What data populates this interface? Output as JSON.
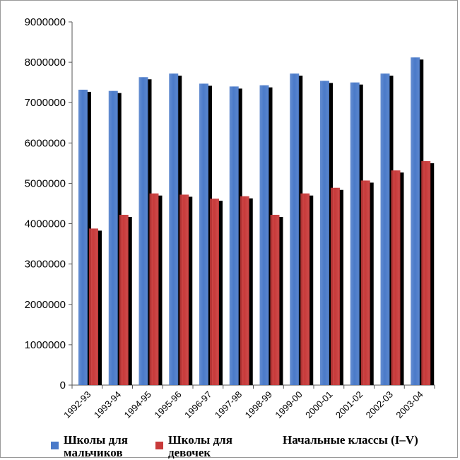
{
  "chart_data": {
    "type": "bar",
    "categories": [
      "1992-93",
      "1993-94",
      "1994-95",
      "1995-96",
      "1996-97",
      "1997-98",
      "1998-99",
      "1999-00",
      "2000-01",
      "2001-02",
      "2002-03",
      "2003-04"
    ],
    "series": [
      {
        "name": "Школы для мальчиков",
        "color": "#4a7ac9",
        "values": [
          7320000,
          7290000,
          7630000,
          7720000,
          7470000,
          7400000,
          7430000,
          7720000,
          7540000,
          7500000,
          7720000,
          8120000
        ]
      },
      {
        "name": "Школы для девочек",
        "color": "#c83a3a",
        "values": [
          3880000,
          4220000,
          4750000,
          4720000,
          4620000,
          4680000,
          4220000,
          4750000,
          4890000,
          5070000,
          5320000,
          5550000
        ]
      }
    ],
    "shadow_color": "#000000",
    "yticks": [
      0,
      1000000,
      2000000,
      3000000,
      4000000,
      5000000,
      6000000,
      7000000,
      8000000,
      9000000
    ],
    "ylim": [
      0,
      9000000
    ],
    "annotation": "Начальные классы (I–V)",
    "grid": false,
    "legend_position": "bottom"
  },
  "legend": {
    "boys_line1": "Школы для",
    "boys_line2": "мальчиков",
    "girls_line1": "Школы для",
    "girls_line2": "девочек"
  }
}
